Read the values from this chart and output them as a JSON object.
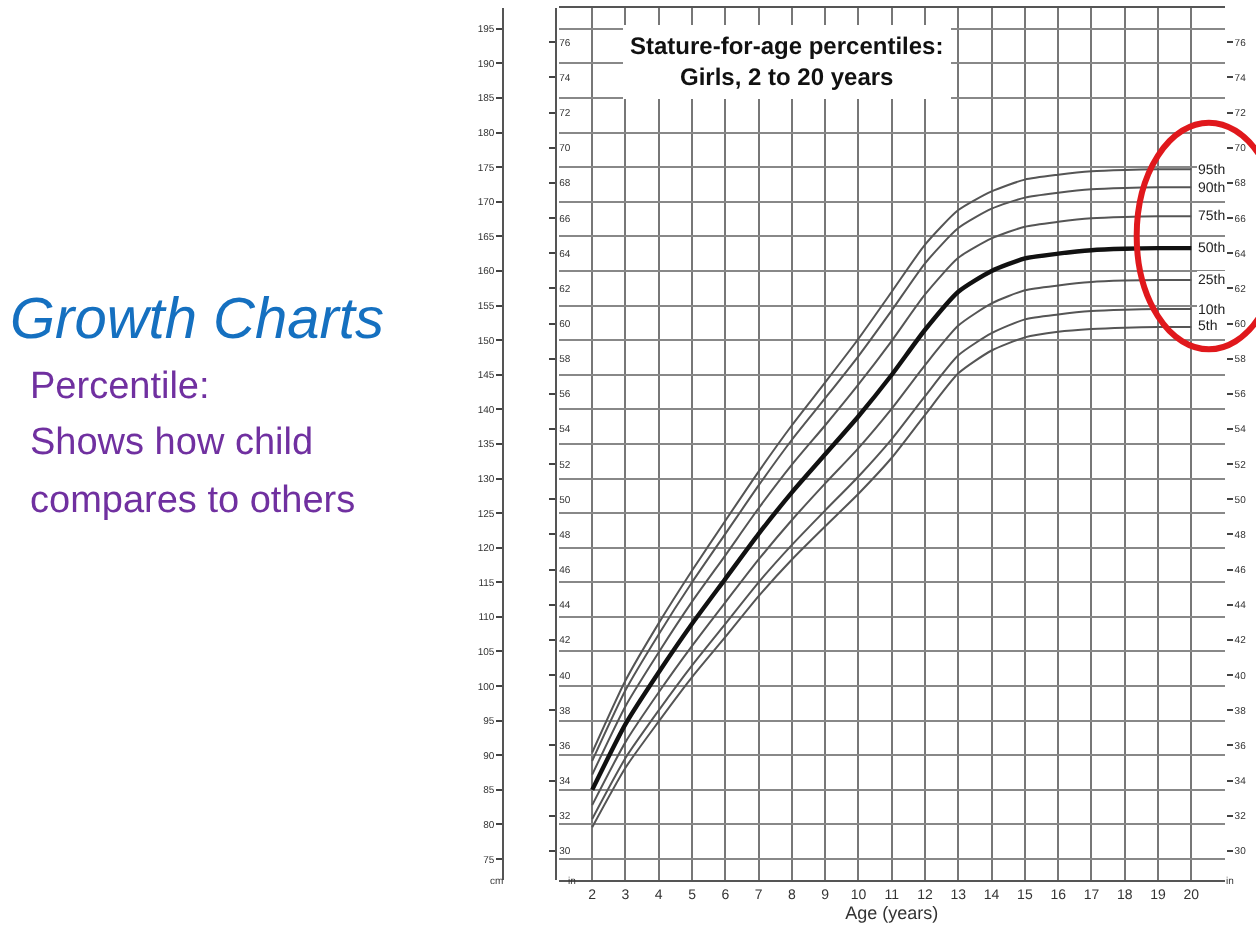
{
  "chart_data": {
    "type": "line",
    "title": "Stature-for-age percentiles:\nGirls, 2 to 20 years",
    "xlabel": "Age (years)",
    "ylabel": "cm",
    "y2label": "in",
    "y3label": "in",
    "annotations": [
      "Growth Charts",
      "Percentile:",
      "Shows how child",
      "compares to others"
    ],
    "x": [
      2,
      3,
      4,
      5,
      6,
      7,
      8,
      9,
      10,
      11,
      12,
      13,
      14,
      15,
      16,
      17,
      18,
      19,
      20
    ],
    "series": [
      {
        "name": "95th",
        "color": "#555555",
        "values": [
          90.4,
          100.8,
          109.1,
          116.7,
          123.9,
          131.0,
          137.7,
          143.9,
          150.2,
          157.0,
          163.8,
          168.8,
          171.5,
          173.2,
          173.9,
          174.4,
          174.6,
          174.7,
          174.7
        ]
      },
      {
        "name": "90th",
        "color": "#555555",
        "values": [
          89.2,
          99.4,
          107.5,
          115.0,
          122.0,
          129.0,
          135.6,
          141.6,
          147.7,
          154.3,
          161.1,
          166.2,
          169.0,
          170.6,
          171.3,
          171.8,
          172.0,
          172.1,
          172.1
        ]
      },
      {
        "name": "75th",
        "color": "#555555",
        "values": [
          87.2,
          97.1,
          104.9,
          112.2,
          118.9,
          125.7,
          132.0,
          137.7,
          143.6,
          149.9,
          156.6,
          161.9,
          164.7,
          166.4,
          167.1,
          167.6,
          167.8,
          167.9,
          167.9
        ]
      },
      {
        "name": "50th",
        "color": "#111111",
        "values": [
          85.0,
          94.5,
          102.0,
          109.0,
          115.5,
          122.0,
          128.0,
          133.5,
          139.0,
          145.0,
          151.5,
          157.0,
          160.0,
          161.8,
          162.5,
          163.0,
          163.2,
          163.3,
          163.3
        ]
      },
      {
        "name": "25th",
        "color": "#555555",
        "values": [
          82.8,
          91.9,
          99.1,
          105.8,
          112.1,
          118.3,
          124.0,
          129.3,
          134.4,
          140.1,
          146.4,
          152.1,
          155.3,
          157.2,
          157.9,
          158.4,
          158.6,
          158.7,
          158.7
        ]
      },
      {
        "name": "10th",
        "color": "#555555",
        "values": [
          80.8,
          89.6,
          96.5,
          103.0,
          109.0,
          115.0,
          120.4,
          125.4,
          130.3,
          135.7,
          141.9,
          147.8,
          151.0,
          153.0,
          153.7,
          154.2,
          154.4,
          154.5,
          154.5
        ]
      },
      {
        "name": "5th",
        "color": "#555555",
        "values": [
          79.6,
          88.2,
          94.9,
          101.3,
          107.1,
          113.0,
          118.3,
          123.1,
          127.8,
          133.0,
          139.2,
          145.2,
          148.5,
          150.4,
          151.2,
          151.6,
          151.8,
          151.9,
          151.9
        ]
      }
    ],
    "xlim": [
      1,
      21
    ],
    "xticks": [
      2,
      3,
      4,
      5,
      6,
      7,
      8,
      9,
      10,
      11,
      12,
      13,
      14,
      15,
      16,
      17,
      18,
      19,
      20
    ],
    "ylim": [
      72,
      198
    ],
    "yticks": [
      75,
      80,
      85,
      90,
      95,
      100,
      105,
      110,
      115,
      120,
      125,
      130,
      135,
      140,
      145,
      150,
      155,
      160,
      165,
      170,
      175,
      180,
      185,
      190,
      195
    ],
    "y2lim": [
      28.35,
      77.95
    ],
    "y2ticks": [
      30,
      32,
      34,
      36,
      38,
      40,
      42,
      44,
      46,
      48,
      50,
      52,
      54,
      56,
      58,
      60,
      62,
      64,
      66,
      68,
      70,
      72,
      74,
      76
    ],
    "y3lim": [
      28.35,
      77.95
    ],
    "y3ticks": [
      30,
      32,
      34,
      36,
      38,
      40,
      42,
      44,
      46,
      48,
      50,
      52,
      54,
      56,
      58,
      60,
      62,
      64,
      66,
      68,
      70,
      72,
      74,
      76
    ],
    "grid": true,
    "legend": false,
    "marker": "none",
    "line_style": "solid"
  }
}
